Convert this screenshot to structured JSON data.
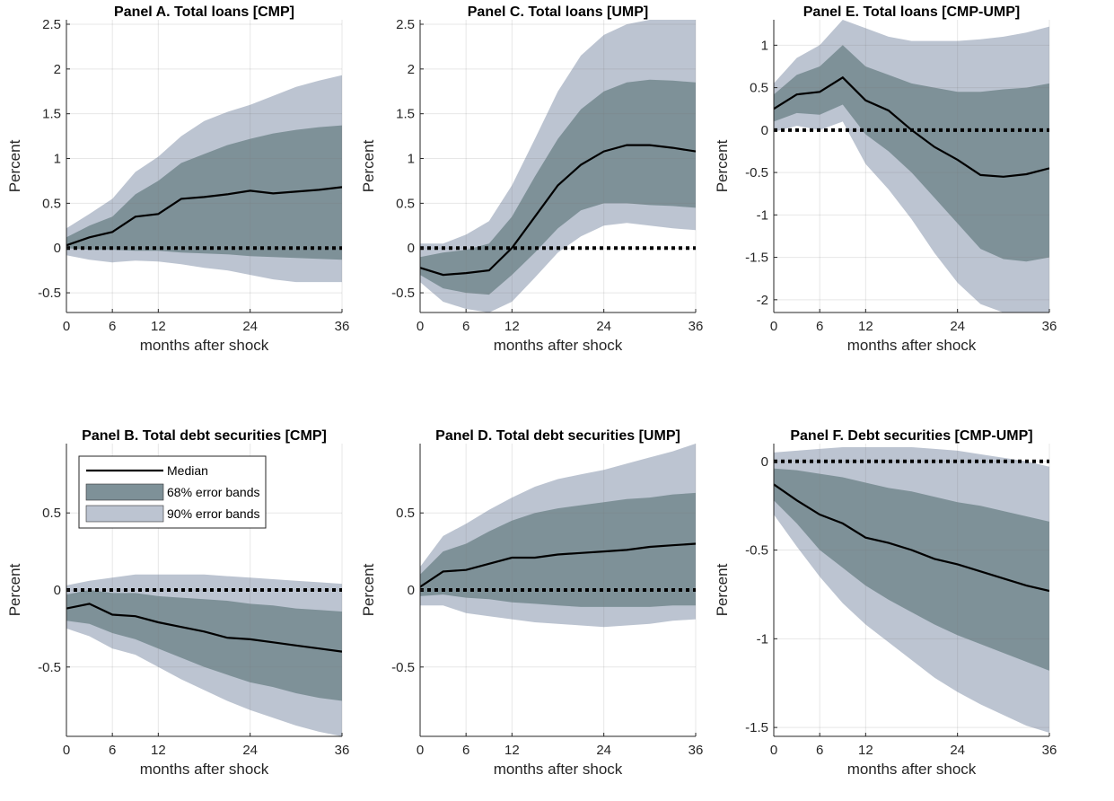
{
  "chart_data": [
    {
      "type": "area",
      "title": "Panel A. Total loans [CMP]",
      "xlabel": "months after shock",
      "ylabel": "Percent",
      "xlim": [
        0,
        36
      ],
      "ylim": [
        -0.72,
        2.55
      ],
      "xticks": [
        0,
        6,
        12,
        24,
        36
      ],
      "yticks": [
        -0.5,
        0,
        0.5,
        1,
        1.5,
        2,
        2.5
      ],
      "ytick_labels": [
        "-0.5",
        "0",
        "0.5",
        "1",
        "1.5",
        "2",
        "2.5"
      ],
      "grid": true,
      "x": [
        0,
        3,
        6,
        9,
        12,
        15,
        18,
        21,
        24,
        27,
        30,
        33,
        36
      ],
      "series": [
        {
          "name": "Median",
          "values": [
            0.03,
            0.12,
            0.18,
            0.35,
            0.38,
            0.55,
            0.57,
            0.6,
            0.64,
            0.61,
            0.63,
            0.65,
            0.68
          ]
        },
        {
          "name": "68% error bands",
          "lower": [
            0.0,
            -0.02,
            -0.02,
            -0.03,
            -0.03,
            -0.05,
            -0.06,
            -0.07,
            -0.09,
            -0.1,
            -0.11,
            -0.12,
            -0.13
          ],
          "upper": [
            0.12,
            0.25,
            0.35,
            0.6,
            0.75,
            0.95,
            1.05,
            1.15,
            1.22,
            1.28,
            1.32,
            1.35,
            1.37
          ]
        },
        {
          "name": "90% error bands",
          "lower": [
            -0.08,
            -0.13,
            -0.16,
            -0.14,
            -0.15,
            -0.18,
            -0.22,
            -0.25,
            -0.3,
            -0.35,
            -0.38,
            -0.38,
            -0.38
          ],
          "upper": [
            0.22,
            0.38,
            0.55,
            0.85,
            1.02,
            1.25,
            1.42,
            1.52,
            1.6,
            1.7,
            1.8,
            1.87,
            1.93
          ]
        }
      ],
      "reference_line": 0
    },
    {
      "type": "area",
      "title": "Panel C. Total loans [UMP]",
      "xlabel": "months after shock",
      "ylabel": "Percent",
      "xlim": [
        0,
        36
      ],
      "ylim": [
        -0.72,
        2.55
      ],
      "xticks": [
        0,
        6,
        12,
        24,
        36
      ],
      "yticks": [
        -0.5,
        0,
        0.5,
        1,
        1.5,
        2,
        2.5
      ],
      "ytick_labels": [
        "-0.5",
        "0",
        "0.5",
        "1",
        "1.5",
        "2",
        "2.5"
      ],
      "grid": true,
      "x": [
        0,
        3,
        6,
        9,
        12,
        15,
        18,
        21,
        24,
        27,
        30,
        33,
        36
      ],
      "series": [
        {
          "name": "Median",
          "values": [
            -0.22,
            -0.3,
            -0.28,
            -0.25,
            0.0,
            0.35,
            0.7,
            0.93,
            1.08,
            1.15,
            1.15,
            1.12,
            1.08
          ]
        },
        {
          "name": "68% error bands",
          "lower": [
            -0.3,
            -0.45,
            -0.5,
            -0.52,
            -0.3,
            -0.05,
            0.22,
            0.42,
            0.5,
            0.5,
            0.48,
            0.47,
            0.45
          ],
          "upper": [
            -0.1,
            -0.05,
            -0.02,
            0.05,
            0.35,
            0.8,
            1.22,
            1.55,
            1.75,
            1.85,
            1.88,
            1.87,
            1.85
          ]
        },
        {
          "name": "90% error bands",
          "lower": [
            -0.38,
            -0.6,
            -0.68,
            -0.72,
            -0.6,
            -0.33,
            -0.05,
            0.13,
            0.25,
            0.28,
            0.25,
            0.22,
            0.2
          ],
          "upper": [
            0.05,
            0.05,
            0.15,
            0.3,
            0.7,
            1.22,
            1.75,
            2.15,
            2.38,
            2.5,
            2.55,
            2.55,
            2.55
          ]
        }
      ],
      "reference_line": 0
    },
    {
      "type": "area",
      "title": "Panel E. Total loans [CMP-UMP]",
      "xlabel": "months after shock",
      "ylabel": "Percent",
      "xlim": [
        0,
        36
      ],
      "ylim": [
        -2.15,
        1.3
      ],
      "xticks": [
        0,
        6,
        12,
        24,
        36
      ],
      "yticks": [
        -2,
        -1.5,
        -1,
        -0.5,
        0,
        0.5,
        1
      ],
      "ytick_labels": [
        "-2",
        "-1.5",
        "-1",
        "-0.5",
        "0",
        "0.5",
        "1"
      ],
      "grid": true,
      "x": [
        0,
        3,
        6,
        9,
        12,
        15,
        18,
        21,
        24,
        27,
        30,
        33,
        36
      ],
      "series": [
        {
          "name": "Median",
          "values": [
            0.25,
            0.42,
            0.45,
            0.62,
            0.35,
            0.23,
            0.0,
            -0.2,
            -0.35,
            -0.53,
            -0.55,
            -0.52,
            -0.45
          ]
        },
        {
          "name": "68% error bands",
          "lower": [
            0.1,
            0.2,
            0.18,
            0.3,
            -0.05,
            -0.25,
            -0.5,
            -0.8,
            -1.1,
            -1.4,
            -1.52,
            -1.55,
            -1.5
          ],
          "upper": [
            0.42,
            0.65,
            0.75,
            1.0,
            0.75,
            0.65,
            0.55,
            0.5,
            0.45,
            0.45,
            0.48,
            0.5,
            0.55
          ]
        },
        {
          "name": "90% error bands",
          "lower": [
            -0.02,
            0.05,
            0.0,
            0.1,
            -0.4,
            -0.7,
            -1.05,
            -1.45,
            -1.8,
            -2.05,
            -2.15,
            -2.15,
            -2.15
          ],
          "upper": [
            0.55,
            0.85,
            1.0,
            1.3,
            1.2,
            1.1,
            1.05,
            1.05,
            1.05,
            1.07,
            1.1,
            1.15,
            1.22
          ]
        }
      ],
      "reference_line": 0
    },
    {
      "type": "area",
      "title": "Panel B. Total debt securities [CMP]",
      "xlabel": "months after shock",
      "ylabel": "Percent",
      "xlim": [
        0,
        36
      ],
      "ylim": [
        -0.95,
        0.95
      ],
      "xticks": [
        0,
        6,
        12,
        24,
        36
      ],
      "yticks": [
        -0.5,
        0,
        0.5
      ],
      "ytick_labels": [
        "-0.5",
        "0",
        "0.5"
      ],
      "grid": true,
      "legend": {
        "position": "top-left",
        "entries": [
          "Median",
          "68% error bands",
          "90% error bands"
        ]
      },
      "x": [
        0,
        3,
        6,
        9,
        12,
        15,
        18,
        21,
        24,
        27,
        30,
        33,
        36
      ],
      "series": [
        {
          "name": "Median",
          "values": [
            -0.12,
            -0.09,
            -0.16,
            -0.17,
            -0.21,
            -0.24,
            -0.27,
            -0.31,
            -0.32,
            -0.34,
            -0.36,
            -0.38,
            -0.4
          ]
        },
        {
          "name": "68% error bands",
          "lower": [
            -0.2,
            -0.22,
            -0.28,
            -0.32,
            -0.38,
            -0.44,
            -0.5,
            -0.55,
            -0.6,
            -0.63,
            -0.67,
            -0.7,
            -0.72
          ],
          "upper": [
            -0.03,
            0.0,
            -0.02,
            -0.02,
            -0.04,
            -0.05,
            -0.06,
            -0.07,
            -0.09,
            -0.1,
            -0.12,
            -0.13,
            -0.14
          ]
        },
        {
          "name": "90% error bands",
          "lower": [
            -0.25,
            -0.3,
            -0.38,
            -0.42,
            -0.5,
            -0.58,
            -0.65,
            -0.72,
            -0.78,
            -0.83,
            -0.88,
            -0.92,
            -0.95
          ],
          "upper": [
            0.03,
            0.06,
            0.08,
            0.1,
            0.1,
            0.1,
            0.1,
            0.09,
            0.08,
            0.07,
            0.06,
            0.05,
            0.04
          ]
        }
      ],
      "reference_line": 0
    },
    {
      "type": "area",
      "title": "Panel D. Total debt securities [UMP]",
      "xlabel": "months after shock",
      "ylabel": "Percent",
      "xlim": [
        0,
        36
      ],
      "ylim": [
        -0.95,
        0.95
      ],
      "xticks": [
        0,
        6,
        12,
        24,
        36
      ],
      "yticks": [
        -0.5,
        0,
        0.5
      ],
      "ytick_labels": [
        "-0.5",
        "0",
        "0.5"
      ],
      "grid": true,
      "x": [
        0,
        3,
        6,
        9,
        12,
        15,
        18,
        21,
        24,
        27,
        30,
        33,
        36
      ],
      "series": [
        {
          "name": "Median",
          "values": [
            0.02,
            0.12,
            0.13,
            0.17,
            0.21,
            0.21,
            0.23,
            0.24,
            0.25,
            0.26,
            0.28,
            0.29,
            0.3
          ]
        },
        {
          "name": "68% error bands",
          "lower": [
            -0.04,
            -0.03,
            -0.05,
            -0.06,
            -0.08,
            -0.09,
            -0.1,
            -0.11,
            -0.11,
            -0.11,
            -0.11,
            -0.1,
            -0.1
          ],
          "upper": [
            0.1,
            0.25,
            0.3,
            0.38,
            0.45,
            0.5,
            0.53,
            0.55,
            0.57,
            0.59,
            0.6,
            0.62,
            0.63
          ]
        },
        {
          "name": "90% error bands",
          "lower": [
            -0.1,
            -0.1,
            -0.15,
            -0.17,
            -0.19,
            -0.21,
            -0.22,
            -0.23,
            -0.24,
            -0.23,
            -0.22,
            -0.2,
            -0.19
          ],
          "upper": [
            0.15,
            0.35,
            0.43,
            0.52,
            0.6,
            0.67,
            0.72,
            0.75,
            0.78,
            0.82,
            0.86,
            0.9,
            0.95
          ]
        }
      ],
      "reference_line": 0
    },
    {
      "type": "area",
      "title": "Panel F. Debt securities [CMP-UMP]",
      "xlabel": "months after shock",
      "ylabel": "Percent",
      "xlim": [
        0,
        36
      ],
      "ylim": [
        -1.55,
        0.1
      ],
      "xticks": [
        0,
        6,
        12,
        24,
        36
      ],
      "yticks": [
        -1.5,
        -1,
        -0.5,
        0
      ],
      "ytick_labels": [
        "-1.5",
        "-1",
        "-0.5",
        "0"
      ],
      "grid": true,
      "x": [
        0,
        3,
        6,
        9,
        12,
        15,
        18,
        21,
        24,
        27,
        30,
        33,
        36
      ],
      "series": [
        {
          "name": "Median",
          "values": [
            -0.13,
            -0.22,
            -0.3,
            -0.35,
            -0.43,
            -0.46,
            -0.5,
            -0.55,
            -0.58,
            -0.62,
            -0.66,
            -0.7,
            -0.73
          ]
        },
        {
          "name": "68% error bands",
          "lower": [
            -0.22,
            -0.35,
            -0.5,
            -0.6,
            -0.7,
            -0.78,
            -0.85,
            -0.92,
            -0.98,
            -1.03,
            -1.08,
            -1.13,
            -1.18
          ],
          "upper": [
            -0.04,
            -0.05,
            -0.07,
            -0.09,
            -0.12,
            -0.15,
            -0.17,
            -0.2,
            -0.23,
            -0.25,
            -0.28,
            -0.31,
            -0.34
          ]
        },
        {
          "name": "90% error bands",
          "lower": [
            -0.3,
            -0.48,
            -0.65,
            -0.8,
            -0.92,
            -1.02,
            -1.12,
            -1.22,
            -1.3,
            -1.37,
            -1.43,
            -1.49,
            -1.53
          ],
          "upper": [
            0.05,
            0.06,
            0.07,
            0.08,
            0.08,
            0.08,
            0.08,
            0.07,
            0.06,
            0.04,
            0.02,
            0.0,
            -0.03
          ]
        }
      ],
      "reference_line": 0
    }
  ],
  "colors": {
    "band90": "#bcc4d1",
    "band68": "#7e9198",
    "median": "#000000",
    "zero_line": "#000000",
    "grid": "#e2e2e2",
    "axis": "#262626"
  }
}
